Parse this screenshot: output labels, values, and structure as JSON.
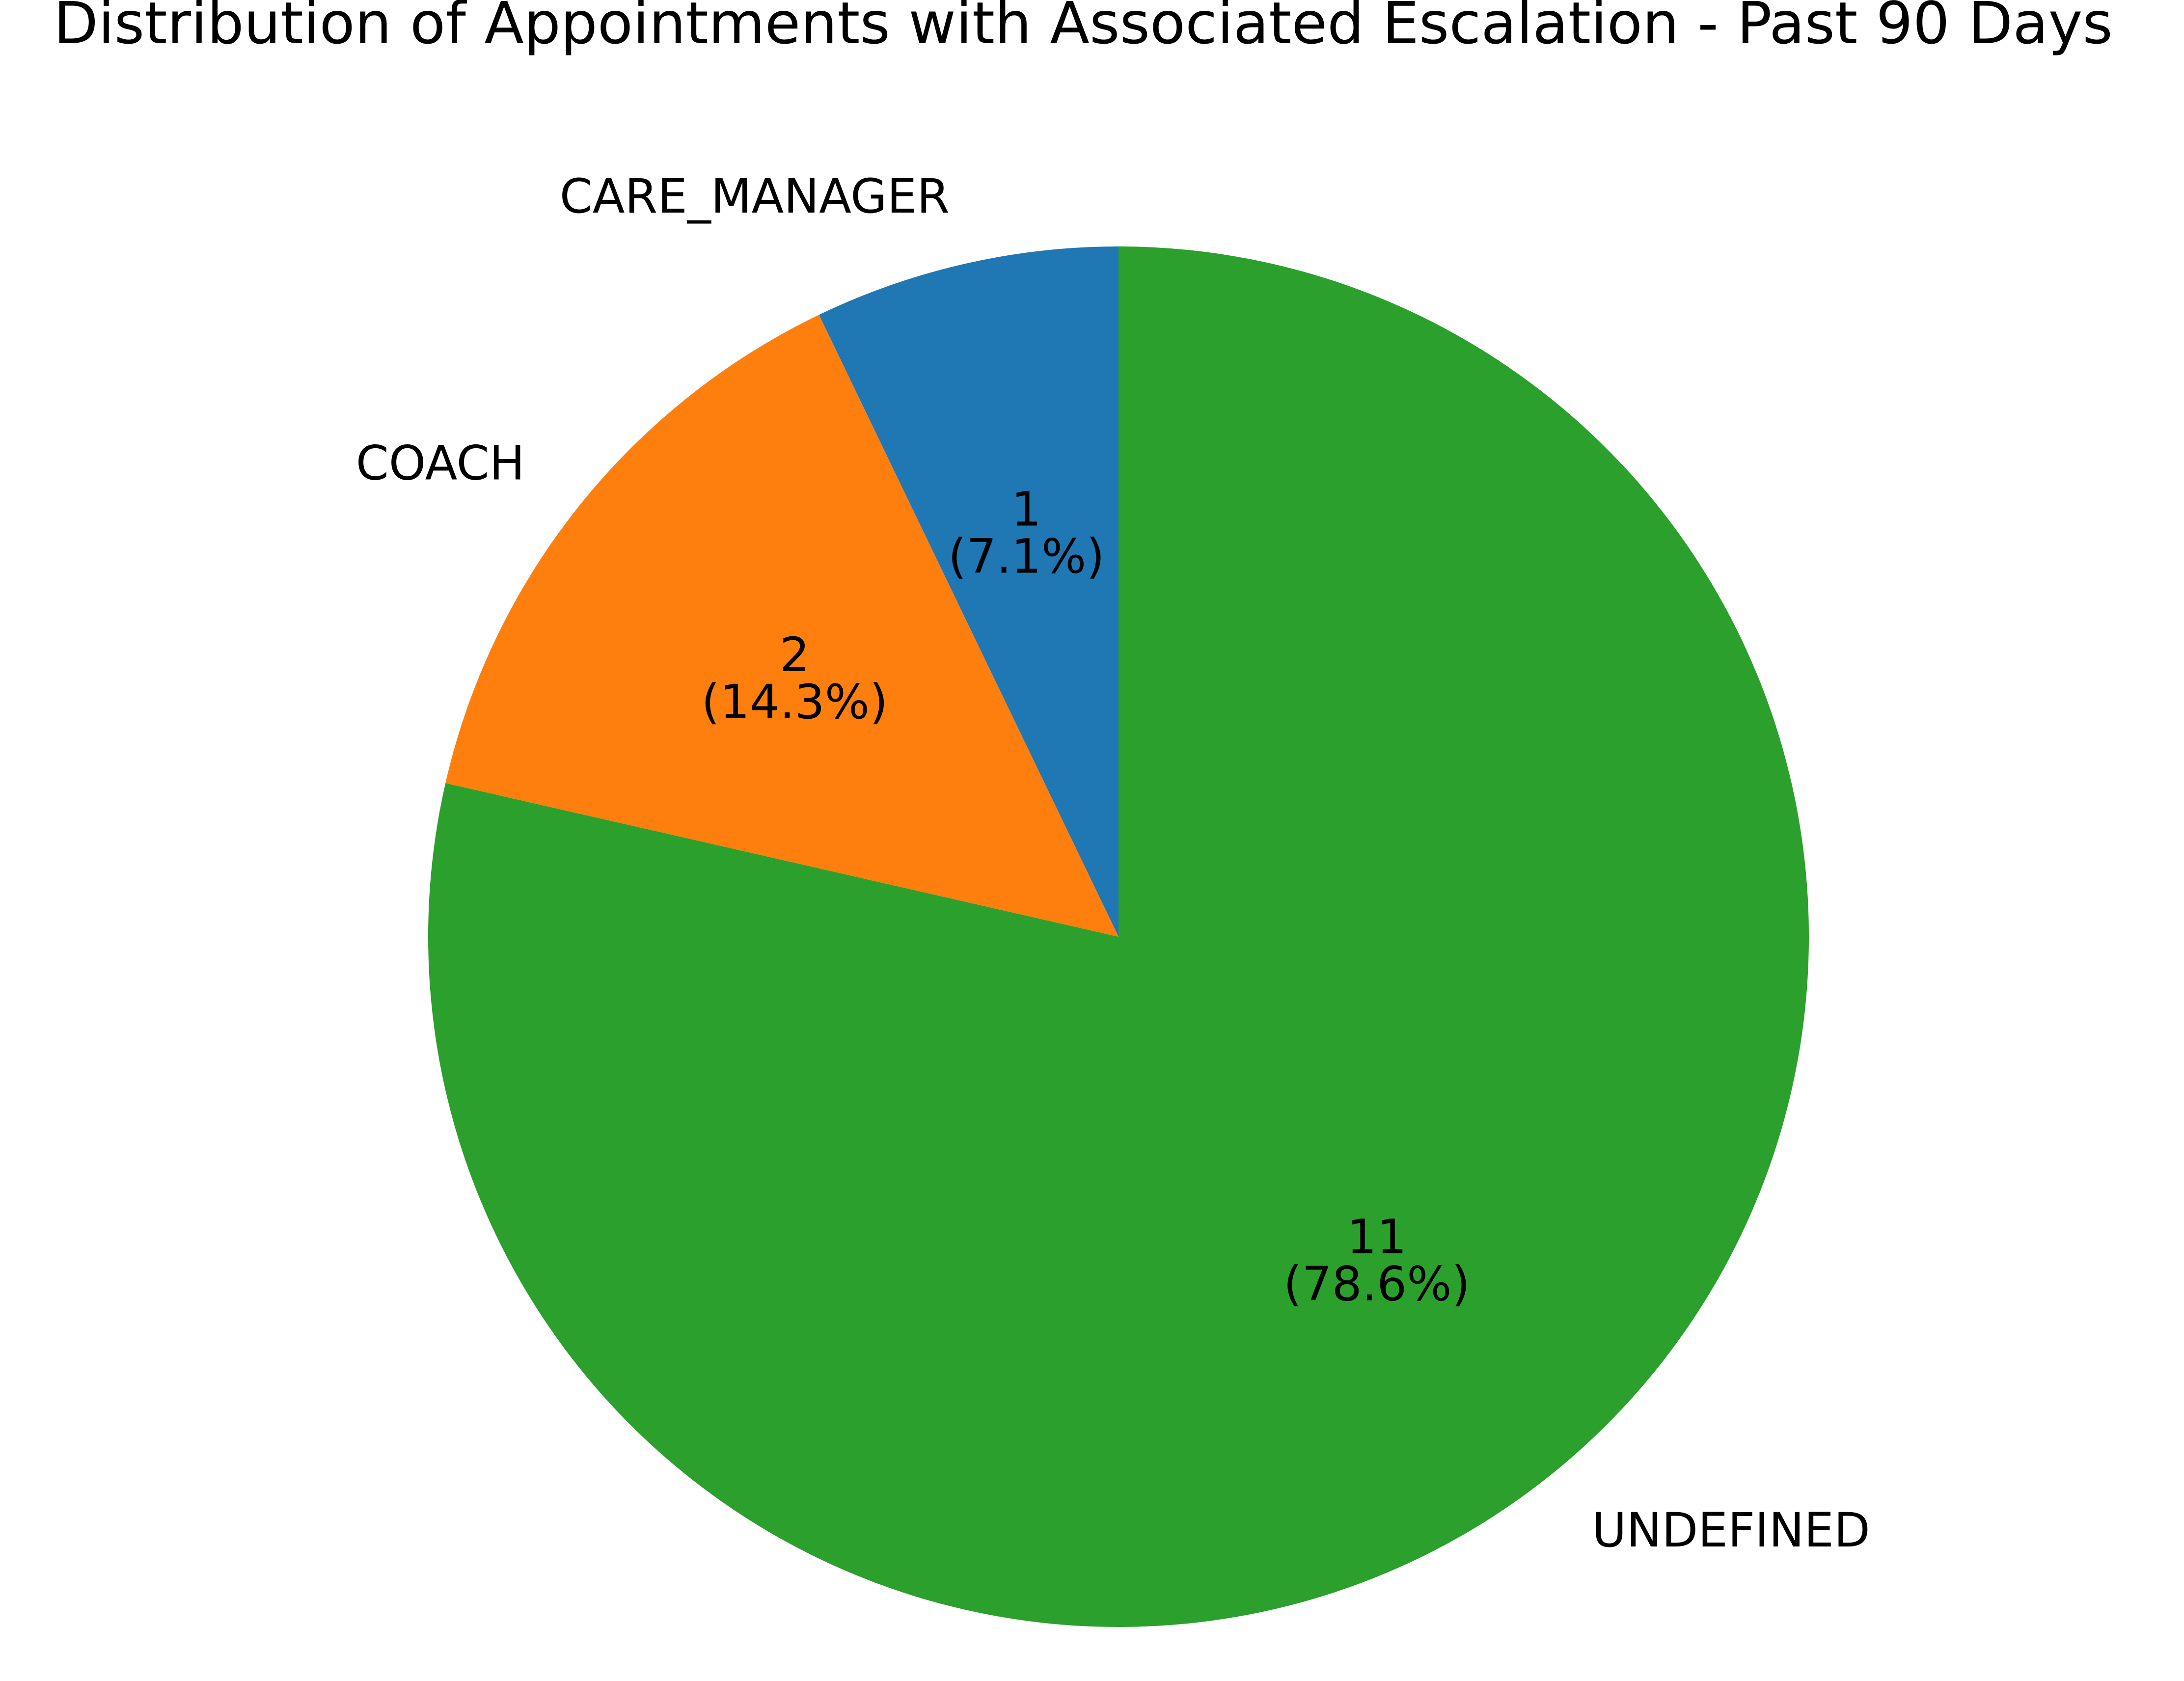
{
  "chart_data": {
    "type": "pie",
    "title": "Distribution of Appointments with Associated Escalation - Past 90 Days",
    "start_angle_deg": 90,
    "direction": "counterclockwise",
    "slices": [
      {
        "label": "CARE_MANAGER",
        "value": 1,
        "percent": 7.1,
        "color": "#1f77b4"
      },
      {
        "label": "COACH",
        "value": 2,
        "percent": 14.3,
        "color": "#ff7f0e"
      },
      {
        "label": "UNDEFINED",
        "value": 11,
        "percent": 78.6,
        "color": "#2ca02c"
      }
    ]
  }
}
